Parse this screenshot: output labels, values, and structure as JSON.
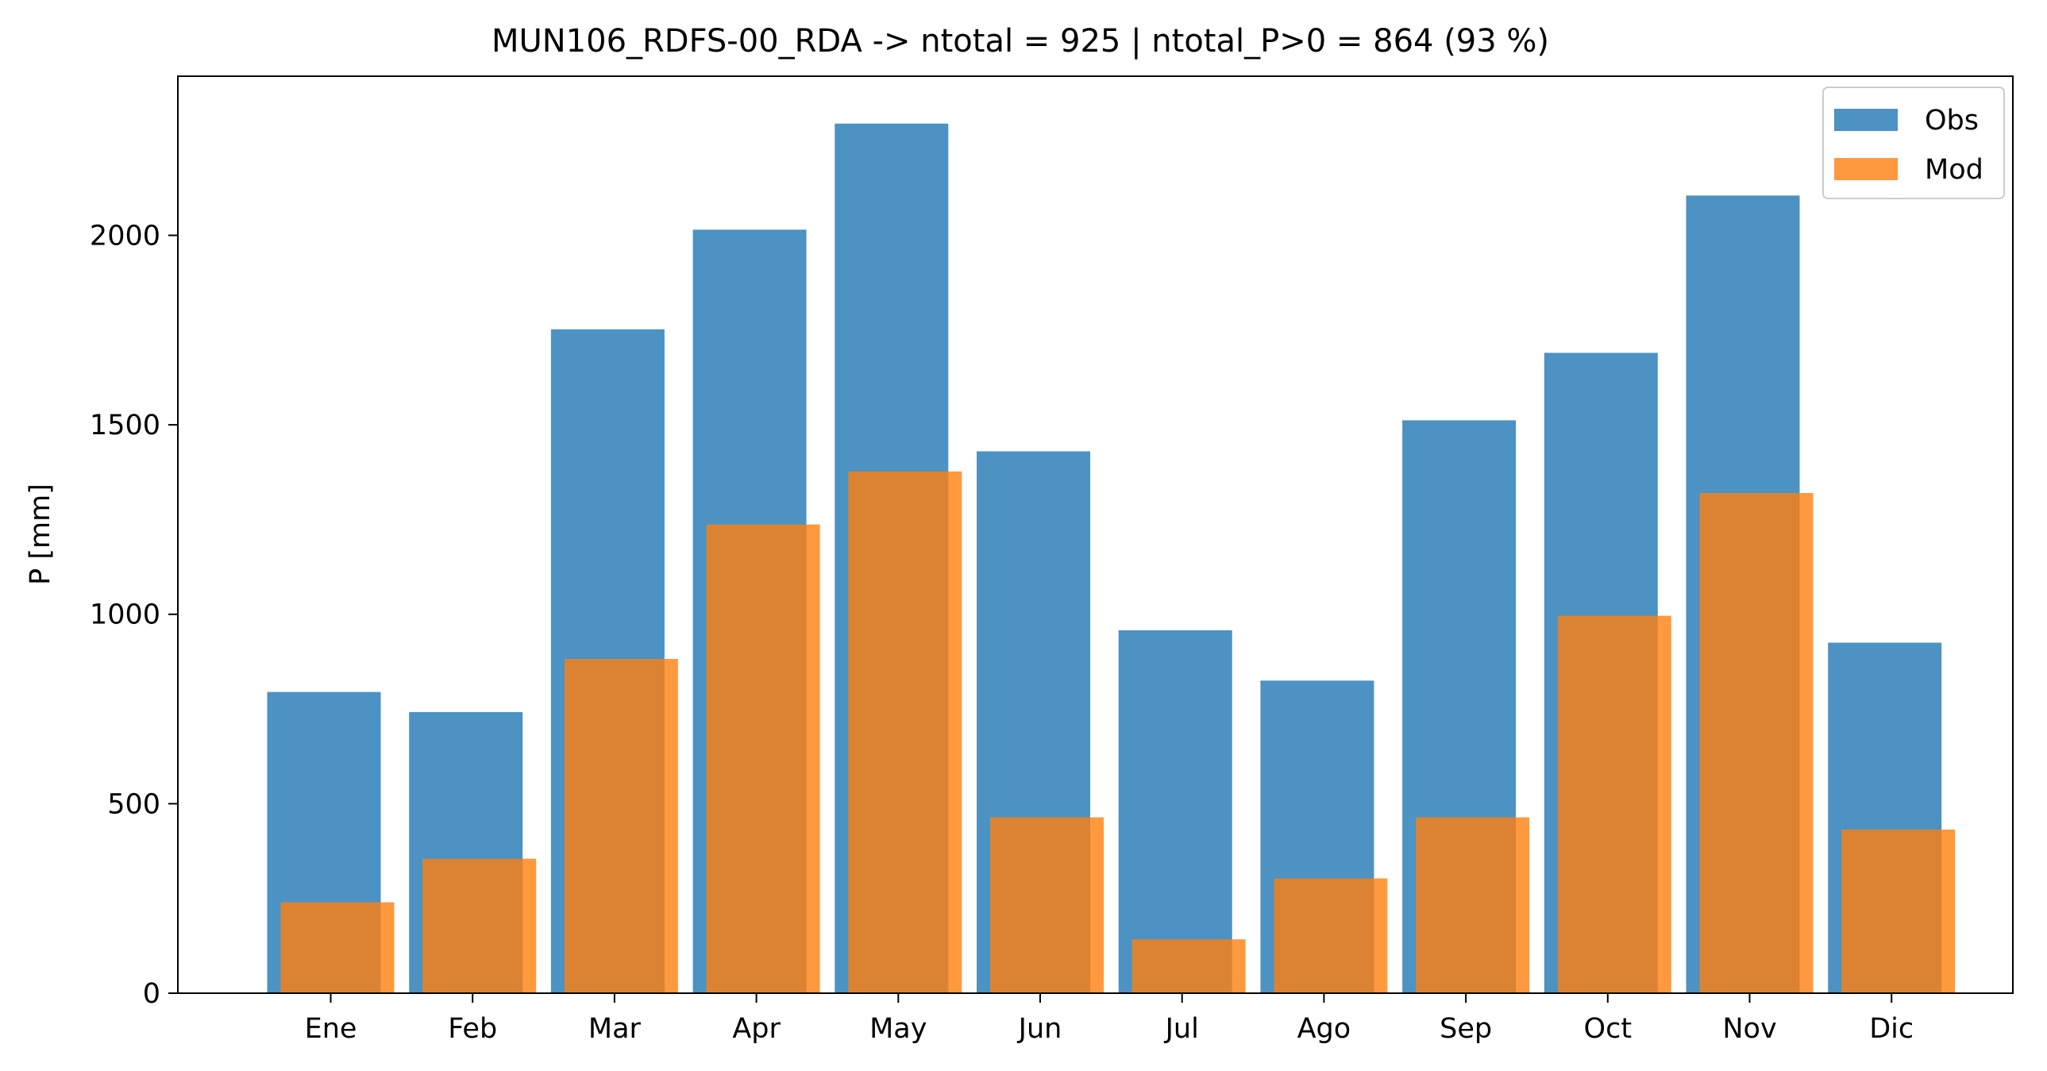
{
  "chart_data": {
    "type": "bar",
    "title": "MUN106_RDFS-00_RDA -> ntotal = 925 | ntotal_P>0 = 864 (93 %)",
    "xlabel": "",
    "ylabel": "P [mm]",
    "ylim": [
      0,
      2420
    ],
    "yticks": [
      0,
      500,
      1000,
      1500,
      2000
    ],
    "categories": [
      "Ene",
      "Feb",
      "Mar",
      "Apr",
      "May",
      "Jun",
      "Jul",
      "Ago",
      "Sep",
      "Oct",
      "Nov",
      "Dic"
    ],
    "series": [
      {
        "name": "Obs",
        "color": "#1f77b4",
        "values": [
          795,
          742,
          1752,
          2015,
          2295,
          1430,
          958,
          825,
          1512,
          1690,
          2105,
          925
        ]
      },
      {
        "name": "Mod",
        "color": "#ff7f0e",
        "values": [
          240,
          355,
          882,
          1237,
          1377,
          464,
          142,
          303,
          464,
          996,
          1320,
          432
        ]
      }
    ],
    "grid": false,
    "legend_position": "top-right"
  }
}
